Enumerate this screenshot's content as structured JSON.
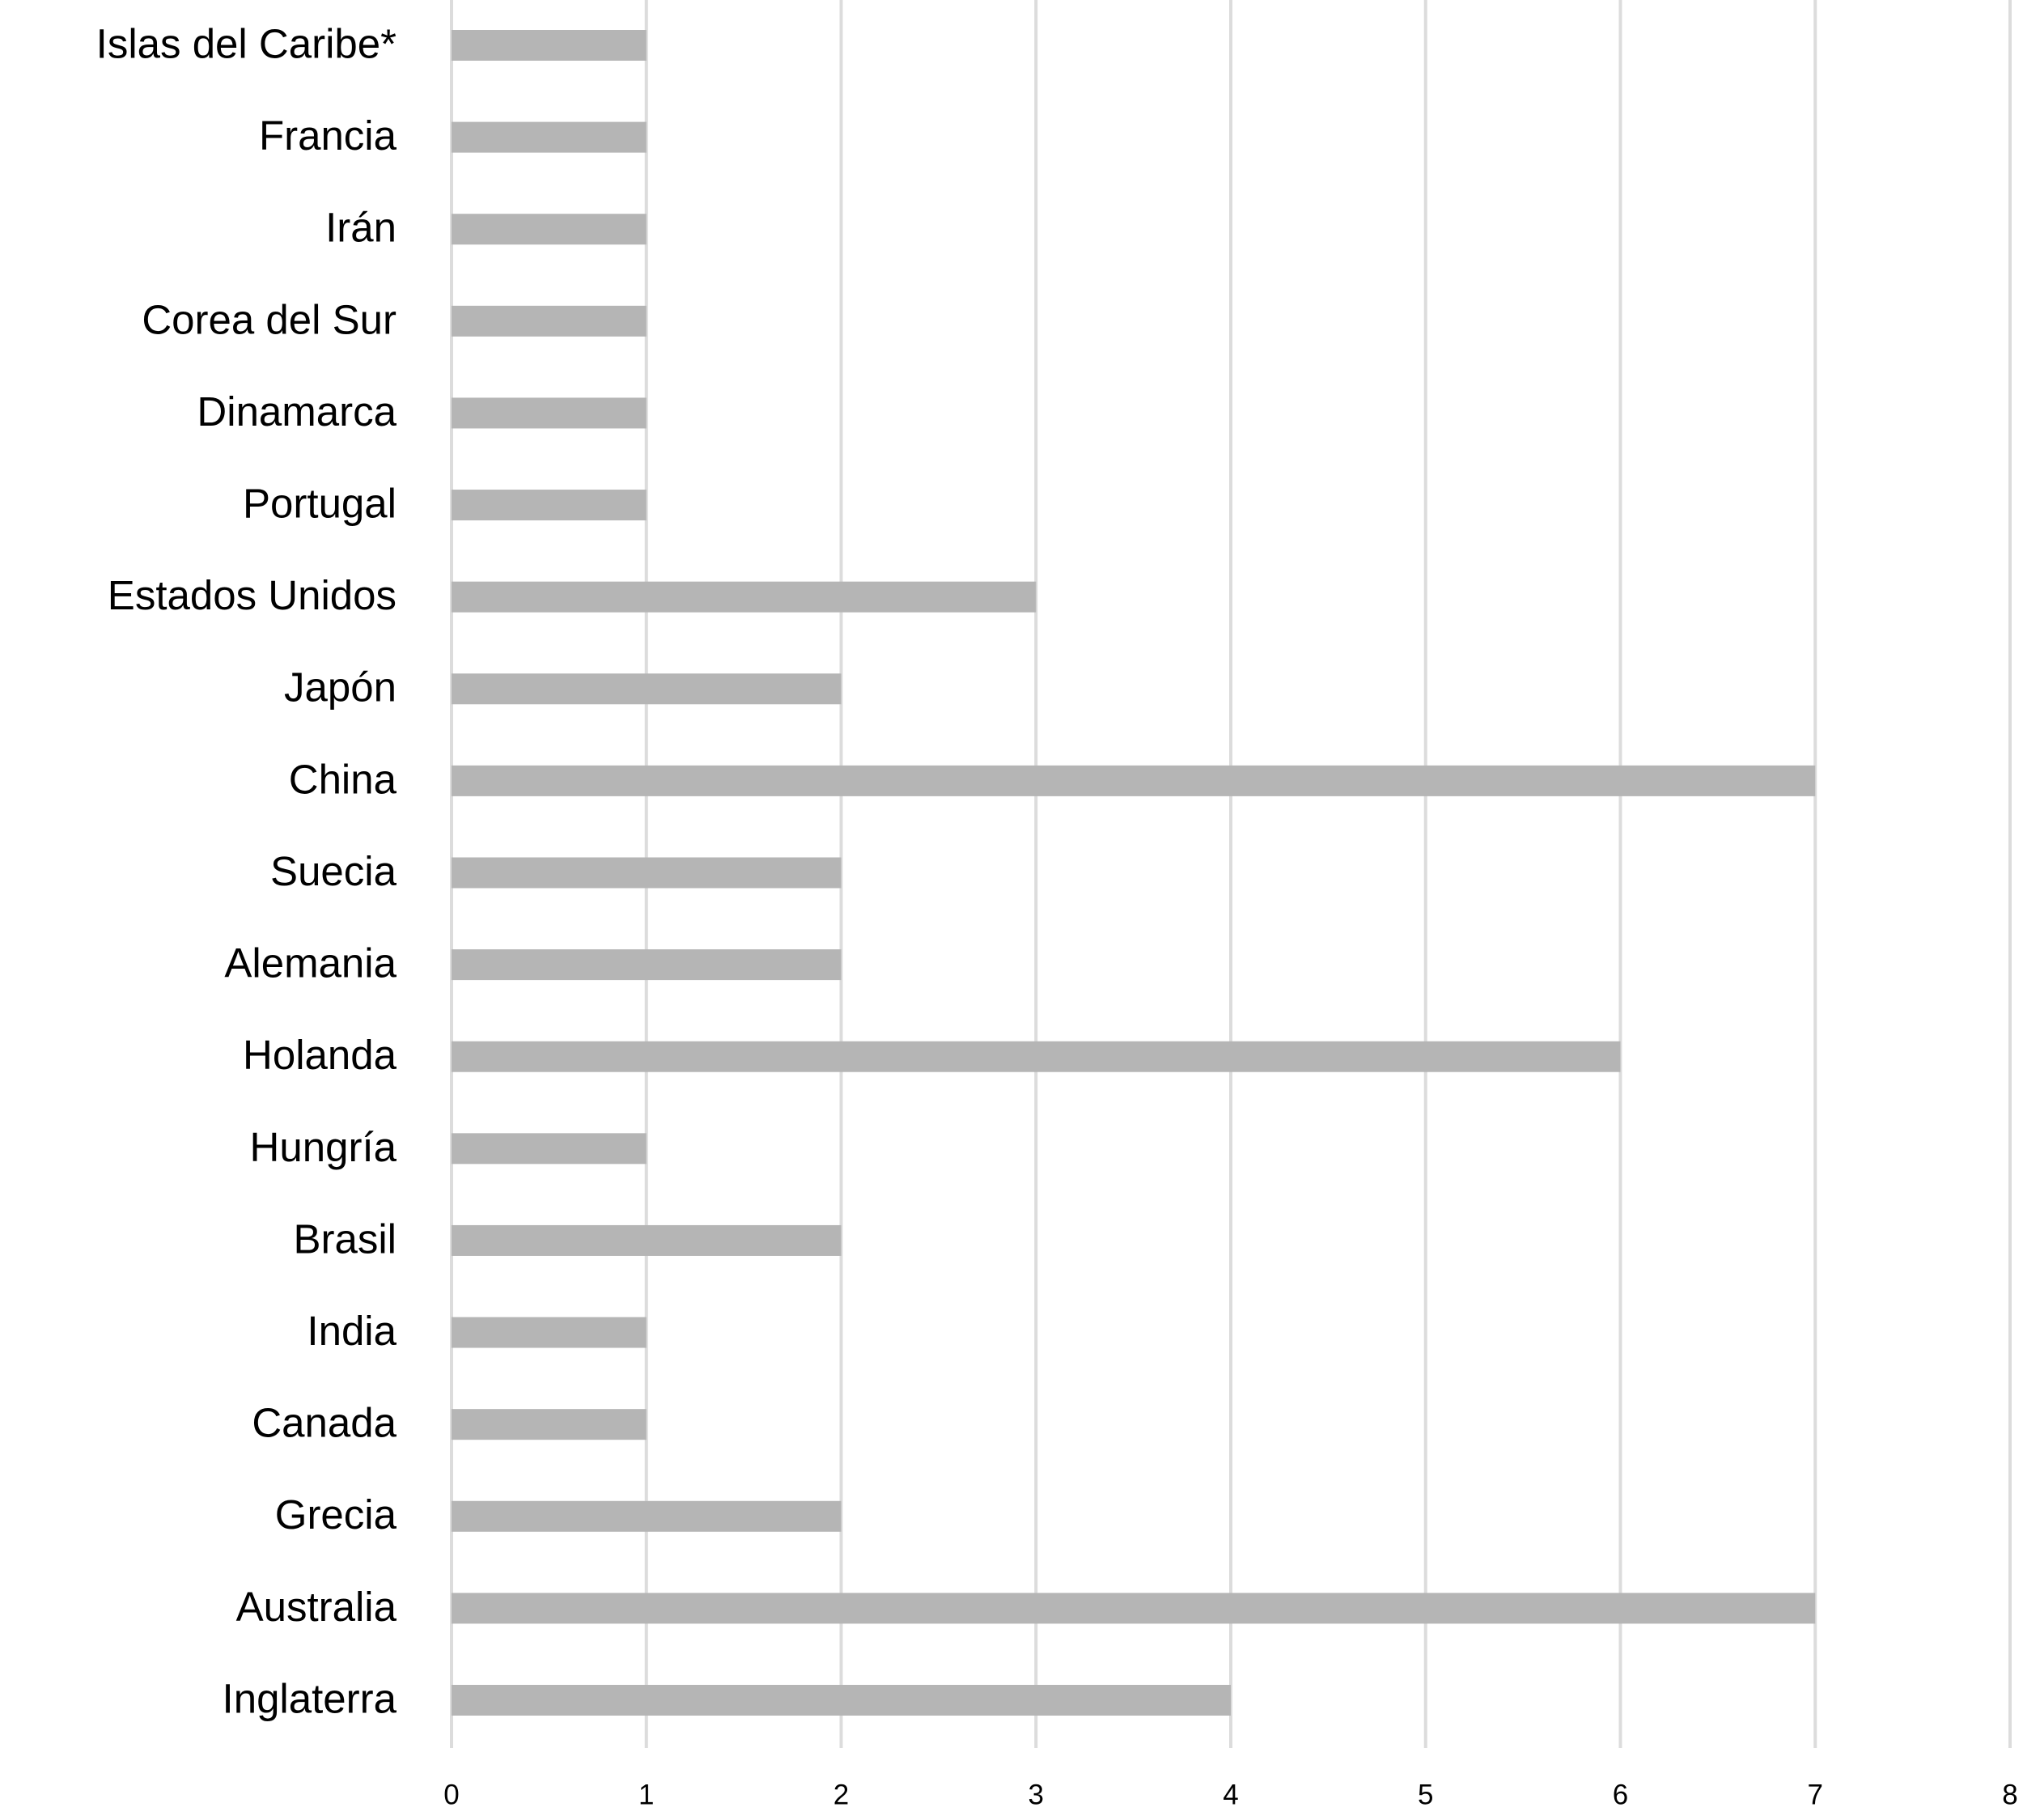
{
  "chart_data": {
    "type": "barh",
    "categories": [
      "Islas del Caribe*",
      "Francia",
      "Irán",
      "Corea del Sur",
      "Dinamarca",
      "Portugal",
      "Estados Unidos",
      "Japón",
      "China",
      "Suecia",
      "Alemania",
      "Holanda",
      "Hungría",
      "Brasil",
      "India",
      "Canada",
      "Grecia",
      "Australia",
      "Inglaterra"
    ],
    "values": [
      1,
      1,
      1,
      1,
      1,
      1,
      3,
      2,
      7,
      2,
      2,
      6,
      1,
      2,
      1,
      1,
      2,
      7,
      4
    ],
    "color": "#b5b5b5",
    "xlim": [
      0,
      8
    ],
    "xticks": [
      0,
      1,
      2,
      3,
      4,
      5,
      6,
      7,
      8
    ],
    "grid": true
  }
}
